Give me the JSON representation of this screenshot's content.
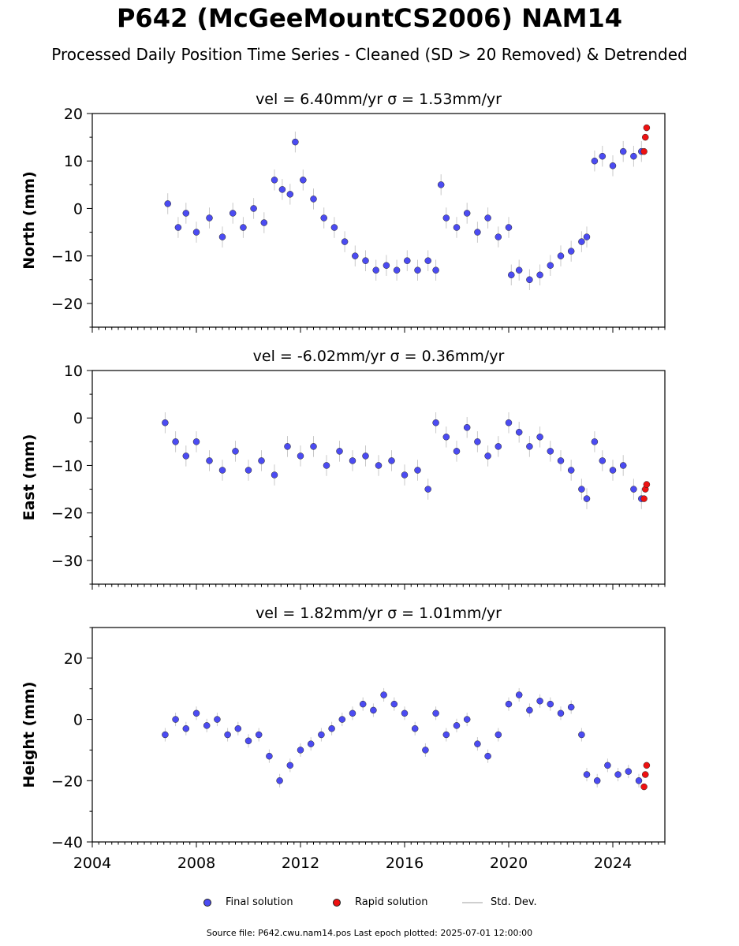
{
  "title": "P642 (McGeeMountCS2006) NAM14",
  "subtitle": "Processed Daily Position Time Series - Cleaned (SD > 20 Removed) & Detrended",
  "legend": {
    "final": "Final solution",
    "rapid": "Rapid solution",
    "stddev": "Std. Dev."
  },
  "source_text": "Source file: P642.cwu.nam14.pos  Last epoch plotted: 2025-07-01 12:00:00",
  "colors": {
    "final": "#4b4bf2",
    "rapid": "#ee1111",
    "stddev": "#c8c8c8"
  },
  "chart_data": [
    {
      "type": "scatter",
      "title": "vel = 6.40mm/yr   σ = 1.53mm/yr",
      "ylabel": "North (mm)",
      "xlim": [
        2004,
        2026
      ],
      "ylim": [
        -25,
        20
      ],
      "yticks": [
        20,
        10,
        0,
        -10,
        -20
      ],
      "xticks": [
        2004,
        2008,
        2012,
        2016,
        2020,
        2024
      ],
      "show_xtick_labels": false,
      "series": [
        {
          "name": "Final solution",
          "x": [
            2006.9,
            2007.3,
            2007.6,
            2008.0,
            2008.5,
            2009.0,
            2009.4,
            2009.8,
            2010.2,
            2010.6,
            2011.0,
            2011.3,
            2011.6,
            2011.8,
            2012.1,
            2012.5,
            2012.9,
            2013.3,
            2013.7,
            2014.1,
            2014.5,
            2014.9,
            2015.3,
            2015.7,
            2016.1,
            2016.5,
            2016.9,
            2017.2,
            2017.4,
            2017.6,
            2018.0,
            2018.4,
            2018.8,
            2019.2,
            2019.6,
            2020.0,
            2020.1,
            2020.4,
            2020.8,
            2021.2,
            2021.6,
            2022.0,
            2022.4,
            2022.8,
            2023.0,
            2023.3,
            2023.6,
            2024.0,
            2024.4,
            2024.8,
            2025.1
          ],
          "y": [
            1,
            -4,
            -1,
            -5,
            -2,
            -6,
            -1,
            -4,
            0,
            -3,
            6,
            4,
            3,
            14,
            6,
            2,
            -2,
            -4,
            -7,
            -10,
            -11,
            -13,
            -12,
            -13,
            -11,
            -13,
            -11,
            -13,
            5,
            -2,
            -4,
            -1,
            -5,
            -2,
            -6,
            -4,
            -14,
            -13,
            -15,
            -14,
            -12,
            -10,
            -9,
            -7,
            -6,
            10,
            11,
            9,
            12,
            11,
            12
          ]
        }
      ],
      "rapid": {
        "x": [
          2025.2,
          2025.25,
          2025.3
        ],
        "y": [
          12,
          15,
          17
        ]
      }
    },
    {
      "type": "scatter",
      "title": "vel = -6.02mm/yr   σ = 0.36mm/yr",
      "ylabel": "East (mm)",
      "xlim": [
        2004,
        2026
      ],
      "ylim": [
        -35,
        10
      ],
      "yticks": [
        10,
        0,
        -10,
        -20,
        -30
      ],
      "xticks": [
        2004,
        2008,
        2012,
        2016,
        2020,
        2024
      ],
      "show_xtick_labels": false,
      "series": [
        {
          "name": "Final solution",
          "x": [
            2006.8,
            2007.2,
            2007.6,
            2008.0,
            2008.5,
            2009.0,
            2009.5,
            2010.0,
            2010.5,
            2011.0,
            2011.5,
            2012.0,
            2012.5,
            2013.0,
            2013.5,
            2014.0,
            2014.5,
            2015.0,
            2015.5,
            2016.0,
            2016.5,
            2016.9,
            2017.2,
            2017.6,
            2018.0,
            2018.4,
            2018.8,
            2019.2,
            2019.6,
            2020.0,
            2020.4,
            2020.8,
            2021.2,
            2021.6,
            2022.0,
            2022.4,
            2022.8,
            2023.0,
            2023.3,
            2023.6,
            2024.0,
            2024.4,
            2024.8,
            2025.1
          ],
          "y": [
            -1,
            -5,
            -8,
            -5,
            -9,
            -11,
            -7,
            -11,
            -9,
            -12,
            -6,
            -8,
            -6,
            -10,
            -7,
            -9,
            -8,
            -10,
            -9,
            -12,
            -11,
            -15,
            -1,
            -4,
            -7,
            -2,
            -5,
            -8,
            -6,
            -1,
            -3,
            -6,
            -4,
            -7,
            -9,
            -11,
            -15,
            -17,
            -5,
            -9,
            -11,
            -10,
            -15,
            -17
          ]
        }
      ],
      "rapid": {
        "x": [
          2025.2,
          2025.25,
          2025.3
        ],
        "y": [
          -17,
          -15,
          -14
        ]
      }
    },
    {
      "type": "scatter",
      "title": "vel = 1.82mm/yr   σ = 1.01mm/yr",
      "ylabel": "Height (mm)",
      "xlim": [
        2004,
        2026
      ],
      "ylim": [
        -40,
        30
      ],
      "yticks": [
        20,
        0,
        -20,
        -40
      ],
      "xticks": [
        2004,
        2008,
        2012,
        2016,
        2020,
        2024
      ],
      "show_xtick_labels": true,
      "series": [
        {
          "name": "Final solution",
          "x": [
            2006.8,
            2007.2,
            2007.6,
            2008.0,
            2008.4,
            2008.8,
            2009.2,
            2009.6,
            2010.0,
            2010.4,
            2010.8,
            2011.2,
            2011.6,
            2012.0,
            2012.4,
            2012.8,
            2013.2,
            2013.6,
            2014.0,
            2014.4,
            2014.8,
            2015.2,
            2015.6,
            2016.0,
            2016.4,
            2016.8,
            2017.2,
            2017.6,
            2018.0,
            2018.4,
            2018.8,
            2019.2,
            2019.6,
            2020.0,
            2020.4,
            2020.8,
            2021.2,
            2021.6,
            2022.0,
            2022.4,
            2022.8,
            2023.0,
            2023.4,
            2023.8,
            2024.2,
            2024.6,
            2025.0
          ],
          "y": [
            -5,
            0,
            -3,
            2,
            -2,
            0,
            -5,
            -3,
            -7,
            -5,
            -12,
            -20,
            -15,
            -10,
            -8,
            -5,
            -3,
            0,
            2,
            5,
            3,
            8,
            5,
            2,
            -3,
            -10,
            2,
            -5,
            -2,
            0,
            -8,
            -12,
            -5,
            5,
            8,
            3,
            6,
            5,
            2,
            4,
            -5,
            -18,
            -20,
            -15,
            -18,
            -17,
            -20
          ]
        }
      ],
      "rapid": {
        "x": [
          2025.2,
          2025.25,
          2025.3
        ],
        "y": [
          -22,
          -18,
          -15
        ]
      }
    }
  ]
}
